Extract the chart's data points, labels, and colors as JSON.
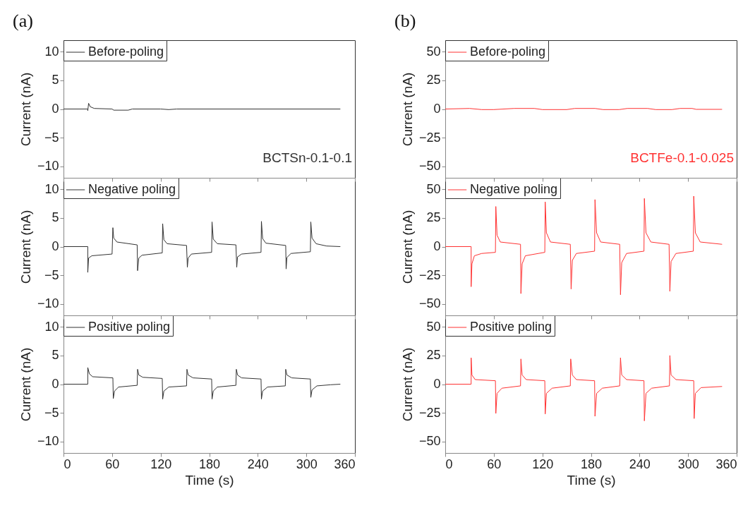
{
  "chart_data": [
    {
      "type": "line",
      "title": "(a)",
      "ylabel": "Current (nA)",
      "xlim": [
        0,
        360
      ],
      "xticks": [
        0,
        60,
        120,
        180,
        240,
        300,
        360
      ],
      "ylim": [
        -12,
        12
      ],
      "yticks": [
        -10,
        -5,
        0,
        5,
        10
      ],
      "tick_labels": "y",
      "legend": "top left",
      "annotations": [
        "BCTSn-0.1-0.1"
      ],
      "series": [
        {
          "name": "Before-poling",
          "color": "#333333",
          "x": [
            0,
            30,
            30,
            31,
            33,
            38,
            60,
            62,
            80,
            85,
            120,
            130,
            140,
            342
          ],
          "values": [
            0,
            0,
            -0.3,
            1.0,
            0.4,
            0.1,
            0,
            -0.2,
            -0.2,
            0,
            0,
            -0.1,
            0,
            0
          ]
        }
      ]
    },
    {
      "type": "line",
      "title": "(b)",
      "ylabel": "Current (nA)",
      "xlim": [
        0,
        360
      ],
      "xticks": [
        0,
        60,
        120,
        180,
        240,
        300,
        360
      ],
      "ylim": [
        -60,
        60
      ],
      "yticks": [
        -50,
        -25,
        0,
        25,
        50
      ],
      "tick_labels": "y",
      "legend": "top left",
      "annotations": [
        "BCTFe-0.1-0.025"
      ],
      "series": [
        {
          "name": "Before-poling",
          "color": "#ff3333",
          "x": [
            0,
            30,
            45,
            60,
            85,
            110,
            120,
            150,
            160,
            185,
            195,
            215,
            225,
            250,
            260,
            280,
            290,
            305,
            310,
            342
          ],
          "values": [
            0,
            0.5,
            -0.5,
            -0.5,
            0.5,
            0.5,
            -0.5,
            -0.5,
            0.5,
            0.5,
            -0.5,
            -0.5,
            0.5,
            0.5,
            -0.5,
            -0.5,
            0.5,
            0.5,
            -0.3,
            -0.3
          ]
        }
      ]
    },
    {
      "type": "line",
      "ylabel": "Current (nA)",
      "xlim": [
        0,
        360
      ],
      "xticks": [
        0,
        60,
        120,
        180,
        240,
        300,
        360
      ],
      "ylim": [
        -12,
        12
      ],
      "yticks": [
        -10,
        -5,
        0,
        5,
        10
      ],
      "tick_labels": "y",
      "legend": "top left",
      "series": [
        {
          "name": "Negative poling",
          "color": "#333333",
          "x": [
            0,
            30,
            30,
            31,
            35,
            60,
            61,
            62,
            66,
            91,
            91.5,
            93,
            97,
            122,
            122.5,
            124,
            128,
            152,
            153,
            154,
            158,
            183,
            183.5,
            185,
            190,
            213,
            214,
            215,
            220,
            244,
            244.5,
            246,
            250,
            274.5,
            275,
            276,
            281,
            305,
            305.5,
            307,
            312,
            325,
            342
          ],
          "values": [
            0,
            0,
            -4.5,
            -2.0,
            -1.6,
            -1.3,
            3.3,
            1.5,
            0.8,
            0.3,
            -4.2,
            -2.0,
            -1.5,
            -1.1,
            4.0,
            1.2,
            0.5,
            0.2,
            -3.6,
            -2.0,
            -1.3,
            -1.0,
            4.3,
            1.3,
            0.5,
            0.3,
            -3.6,
            -1.8,
            -1.3,
            -1.0,
            4.4,
            1.4,
            0.6,
            0.2,
            -3.9,
            -1.9,
            -1.2,
            -0.9,
            4.3,
            1.5,
            0.5,
            0.1,
            0
          ]
        }
      ]
    },
    {
      "type": "line",
      "ylabel": "Current (nA)",
      "xlim": [
        0,
        360
      ],
      "xticks": [
        0,
        60,
        120,
        180,
        240,
        300,
        360
      ],
      "ylim": [
        -60,
        60
      ],
      "yticks": [
        -50,
        -25,
        0,
        25,
        50
      ],
      "tick_labels": "y",
      "legend": "top left",
      "series": [
        {
          "name": "Negative poling",
          "color": "#ff3333",
          "x": [
            0,
            32,
            32,
            33,
            36,
            45,
            62,
            62.5,
            64,
            68,
            93,
            93.5,
            95,
            99,
            123,
            123.5,
            125,
            130,
            154.5,
            155.5,
            157,
            162,
            184.5,
            185,
            187,
            192,
            215.5,
            216.5,
            218,
            224,
            245.5,
            246,
            248,
            254,
            276.5,
            277.5,
            279,
            285,
            306.5,
            307,
            309,
            315,
            342
          ],
          "values": [
            0,
            0,
            -35,
            -15,
            -8,
            -6,
            -5,
            35,
            10,
            4,
            2,
            -41,
            -15,
            -8,
            -5,
            39,
            12,
            4,
            2,
            -37,
            -12,
            -6,
            -4,
            41,
            12,
            4,
            2,
            -42,
            -14,
            -6,
            -4,
            42,
            12,
            4,
            2,
            -39,
            -13,
            -6,
            -4,
            44,
            12,
            4,
            2
          ]
        }
      ]
    },
    {
      "type": "line",
      "xlabel": "Time (s)",
      "ylabel": "Current (nA)",
      "xlim": [
        0,
        360
      ],
      "xticks": [
        0,
        60,
        120,
        180,
        240,
        300,
        360
      ],
      "ylim": [
        -12,
        12
      ],
      "yticks": [
        -10,
        -5,
        0,
        5,
        10
      ],
      "legend": "top left",
      "series": [
        {
          "name": "Positive poling",
          "color": "#333333",
          "x": [
            0,
            30,
            30,
            32,
            36,
            61,
            61.5,
            63,
            68,
            91,
            91.5,
            93,
            98,
            122,
            122.5,
            124,
            130,
            152,
            152.5,
            154,
            160,
            183,
            183.5,
            185,
            190,
            213,
            213.5,
            215,
            220,
            244,
            244.5,
            246,
            252,
            274,
            274.5,
            276,
            282,
            305,
            305.5,
            307,
            313,
            330,
            342
          ],
          "values": [
            0,
            0,
            2.9,
            1.8,
            1.3,
            1.1,
            -2.5,
            -1.2,
            -0.5,
            -0.2,
            2.6,
            1.6,
            1.2,
            1.0,
            -2.6,
            -1.2,
            -0.5,
            -0.3,
            2.6,
            1.6,
            1.1,
            0.9,
            -2.6,
            -1.2,
            -0.5,
            -0.2,
            2.6,
            1.6,
            1.1,
            0.9,
            -2.6,
            -1.2,
            -0.5,
            -0.3,
            2.6,
            1.6,
            1.1,
            0.9,
            -2.3,
            -1.0,
            -0.3,
            -0.1,
            0
          ]
        }
      ]
    },
    {
      "type": "line",
      "xlabel": "Time (s)",
      "ylabel": "Current (nA)",
      "xlim": [
        0,
        360
      ],
      "xticks": [
        0,
        60,
        120,
        180,
        240,
        300,
        360
      ],
      "ylim": [
        -60,
        60
      ],
      "yticks": [
        -50,
        -25,
        0,
        25,
        50
      ],
      "legend": "top left",
      "series": [
        {
          "name": "Positive poling",
          "color": "#ff3333",
          "x": [
            0,
            32,
            32,
            33,
            37,
            62,
            62.5,
            64,
            70,
            93,
            93.5,
            95,
            100,
            123,
            123.5,
            125,
            132,
            154.5,
            155,
            157,
            162,
            184.5,
            185,
            187,
            194,
            215.5,
            216.5,
            218,
            224,
            245.5,
            246,
            248,
            255,
            277,
            277.5,
            279,
            285,
            307,
            307.5,
            309,
            316,
            342
          ],
          "values": [
            0,
            0,
            23,
            8,
            4,
            3,
            -25.5,
            -8,
            -3.5,
            -1.5,
            22,
            8,
            4,
            3,
            -26,
            -8,
            -3.5,
            -1.5,
            22,
            8,
            4,
            3,
            -28,
            -8,
            -3.5,
            -1.5,
            23,
            8,
            4,
            3,
            -32,
            -8,
            -3.5,
            -1.5,
            25,
            8,
            4,
            3,
            -30,
            -8,
            -3,
            -2
          ]
        }
      ]
    }
  ]
}
